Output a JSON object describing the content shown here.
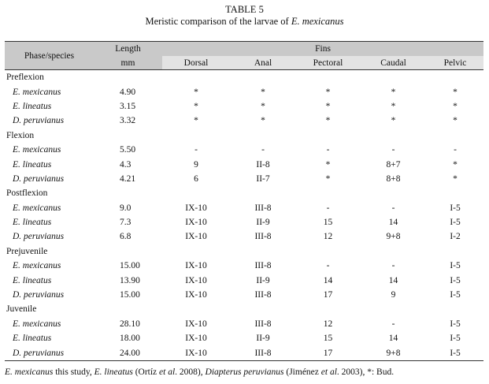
{
  "caption": {
    "line1": "TABLE 5",
    "line2_prefix": "Meristic comparison of the larvae of ",
    "line2_species": "E. mexicanus"
  },
  "header": {
    "phase": "Phase/species",
    "length": "Length",
    "length_unit": "mm",
    "fins": "Fins",
    "dorsal": "Dorsal",
    "anal": "Anal",
    "pectoral": "Pectoral",
    "caudal": "Caudal",
    "pelvic": "Pelvic"
  },
  "groups": [
    {
      "phase": "Preflexion",
      "rows": [
        {
          "species": "E. mexicanus",
          "length": "4.90",
          "dorsal": "*",
          "anal": "*",
          "pectoral": "*",
          "caudal": "*",
          "pelvic": "*"
        },
        {
          "species": "E. lineatus",
          "length": "3.15",
          "dorsal": "*",
          "anal": "*",
          "pectoral": "*",
          "caudal": "*",
          "pelvic": "*"
        },
        {
          "species": "D. peruvianus",
          "length": "3.32",
          "dorsal": "*",
          "anal": "*",
          "pectoral": "*",
          "caudal": "*",
          "pelvic": "*"
        }
      ]
    },
    {
      "phase": "Flexion",
      "rows": [
        {
          "species": "E. mexicanus",
          "length": "5.50",
          "dorsal": "-",
          "anal": "-",
          "pectoral": "-",
          "caudal": "-",
          "pelvic": "-"
        },
        {
          "species": "E. lineatus",
          "length": "4.3",
          "dorsal": "9",
          "anal": "II-8",
          "pectoral": "*",
          "caudal": "8+7",
          "pelvic": "*"
        },
        {
          "species": "D. peruvianus",
          "length": "4.21",
          "dorsal": "6",
          "anal": "II-7",
          "pectoral": "*",
          "caudal": "8+8",
          "pelvic": "*"
        }
      ]
    },
    {
      "phase": "Postflexion",
      "rows": [
        {
          "species": "E. mexicanus",
          "length": "9.0",
          "dorsal": "IX-10",
          "anal": "III-8",
          "pectoral": "-",
          "caudal": "-",
          "pelvic": "I-5"
        },
        {
          "species": "E. lineatus",
          "length": "7.3",
          "dorsal": "IX-10",
          "anal": "II-9",
          "pectoral": "15",
          "caudal": "14",
          "pelvic": "I-5"
        },
        {
          "species": "D. peruvianus",
          "length": "6.8",
          "dorsal": "IX-10",
          "anal": "III-8",
          "pectoral": "12",
          "caudal": "9+8",
          "pelvic": "I-2"
        }
      ]
    },
    {
      "phase": "Prejuvenile",
      "rows": [
        {
          "species": "E. mexicanus",
          "length": "15.00",
          "dorsal": "IX-10",
          "anal": "III-8",
          "pectoral": "-",
          "caudal": "-",
          "pelvic": "I-5"
        },
        {
          "species": "E. lineatus",
          "length": "13.90",
          "dorsal": "IX-10",
          "anal": "II-9",
          "pectoral": "14",
          "caudal": "14",
          "pelvic": "I-5"
        },
        {
          "species": "D. peruvianus",
          "length": "15.00",
          "dorsal": "IX-10",
          "anal": "III-8",
          "pectoral": "17",
          "caudal": "9",
          "pelvic": "I-5"
        }
      ]
    },
    {
      "phase": "Juvenile",
      "rows": [
        {
          "species": "E. mexicanus",
          "length": "28.10",
          "dorsal": "IX-10",
          "anal": "III-8",
          "pectoral": "12",
          "caudal": "-",
          "pelvic": "I-5"
        },
        {
          "species": "E. lineatus",
          "length": "18.00",
          "dorsal": "IX-10",
          "anal": "II-9",
          "pectoral": "15",
          "caudal": "14",
          "pelvic": "I-5"
        },
        {
          "species": "D. peruvianus",
          "length": "24.00",
          "dorsal": "IX-10",
          "anal": "III-8",
          "pectoral": "17",
          "caudal": "9+8",
          "pelvic": "I-5"
        }
      ]
    }
  ],
  "footnote": {
    "sp1": "E. mexicanus",
    "t1": " this study, ",
    "sp2": "E. lineatus",
    "t2": " (Ortíz ",
    "etal1": "et al",
    "t3": ". 2008), ",
    "sp3": "Diapterus peruvianus",
    "t4": " (Jiménez ",
    "etal2": "et al",
    "t5": ". 2003), *: Bud."
  },
  "colors": {
    "header_shade": "#c9c9c9",
    "header_light": "#e3e3e3",
    "rule": "#333333"
  }
}
